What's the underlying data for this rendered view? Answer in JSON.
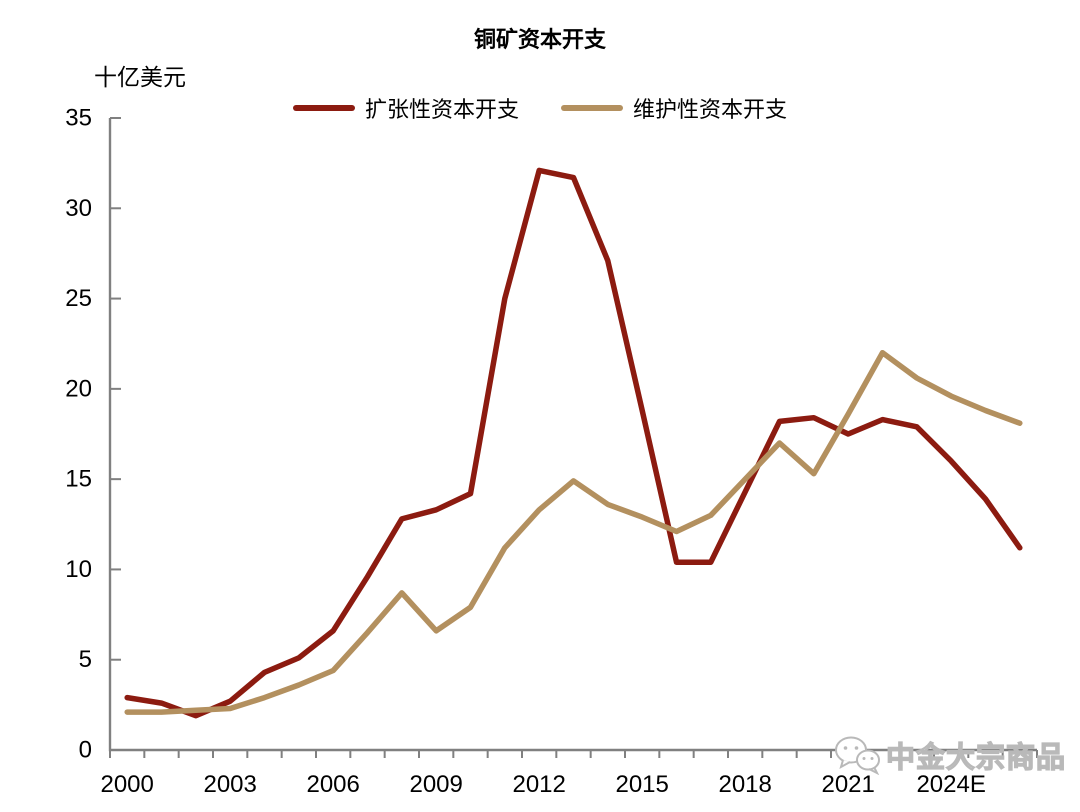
{
  "page": {
    "background": "#ffffff"
  },
  "watermark": {
    "text": "中金大宗商品",
    "icon": "wechat-chat-bubbles-icon",
    "color": "#b9b9b9"
  },
  "chart_data": {
    "type": "line",
    "title": "铜矿资本开支",
    "ylabel": "十亿美元",
    "xlabel": "",
    "ylim": [
      0,
      35
    ],
    "ytick_step": 5,
    "ytick_labels": [
      "0",
      "5",
      "10",
      "15",
      "20",
      "25",
      "30",
      "35"
    ],
    "x_years": [
      2000,
      2001,
      2002,
      2003,
      2004,
      2005,
      2006,
      2007,
      2008,
      2009,
      2010,
      2011,
      2012,
      2013,
      2014,
      2015,
      2016,
      2017,
      2018,
      2019,
      2020,
      2021,
      2022,
      2023,
      2024,
      2025,
      2026
    ],
    "xtick_labels": [
      "2000",
      "2003",
      "2006",
      "2009",
      "2012",
      "2015",
      "2018",
      "2021",
      "2024E"
    ],
    "xtick_positions": [
      0,
      3,
      6,
      9,
      12,
      15,
      18,
      21,
      24
    ],
    "grid": false,
    "legend_position": "top-center",
    "axis_color": "#808080",
    "tick_style": {
      "y": "inside",
      "x": "outside"
    },
    "series": [
      {
        "name": "扩张性资本开支",
        "color": "#8C1B10",
        "values": [
          2.9,
          2.6,
          1.9,
          2.7,
          4.3,
          5.1,
          6.6,
          9.6,
          12.8,
          13.3,
          14.2,
          25.0,
          32.1,
          31.7,
          27.1,
          18.8,
          10.4,
          10.4,
          14.3,
          18.2,
          18.4,
          17.5,
          18.3,
          17.9,
          16.0,
          13.9,
          11.2
        ]
      },
      {
        "name": "维护性资本开支",
        "color": "#B3905F",
        "values": [
          2.1,
          2.1,
          2.2,
          2.3,
          2.9,
          3.6,
          4.4,
          6.5,
          8.7,
          6.6,
          7.9,
          11.2,
          13.3,
          14.9,
          13.6,
          12.9,
          12.1,
          13.0,
          15.0,
          17.0,
          15.3,
          18.6,
          22.0,
          20.6,
          19.6,
          18.8,
          18.1
        ]
      }
    ]
  }
}
